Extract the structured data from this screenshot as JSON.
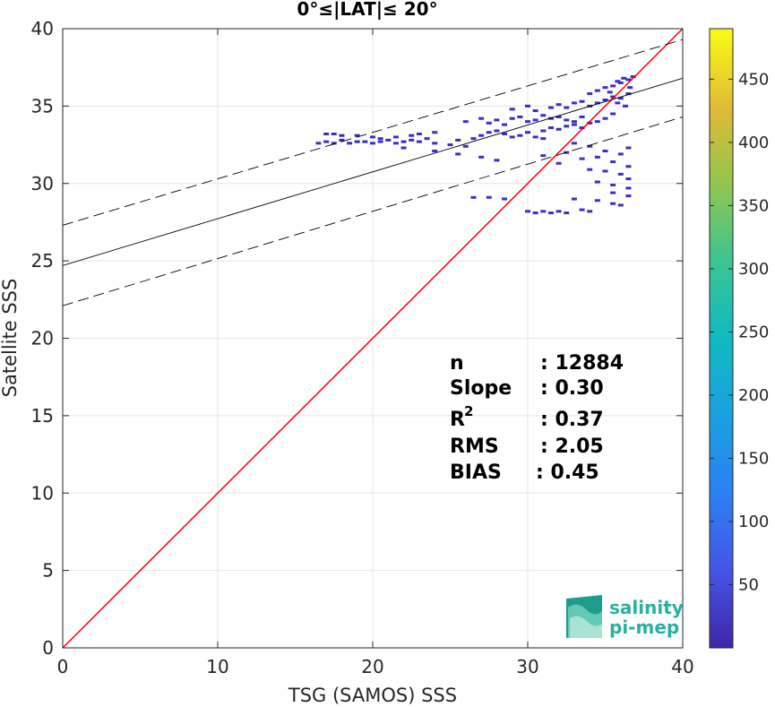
{
  "chart_data": {
    "type": "scatter",
    "title": "0°≤|LAT|≤ 20°",
    "xlabel": "TSG (SAMOS) SSS",
    "ylabel": "Satellite SSS",
    "xlim": [
      0,
      40
    ],
    "ylim": [
      0,
      40
    ],
    "xticks": [
      "0",
      "10",
      "20",
      "30",
      "40"
    ],
    "yticks": [
      "0",
      "5",
      "10",
      "15",
      "20",
      "25",
      "30",
      "35",
      "40"
    ],
    "grid": true,
    "colorbar": {
      "range": [
        0,
        490
      ],
      "ticks": [
        "50",
        "100",
        "150",
        "200",
        "250",
        "300",
        "350",
        "400",
        "450"
      ],
      "colormap": "parula"
    },
    "lines": [
      {
        "kind": "identity",
        "color": "#ff0000",
        "x": [
          0,
          40
        ],
        "y": [
          0,
          40
        ]
      },
      {
        "kind": "fit",
        "color": "#000000",
        "x": [
          0,
          40
        ],
        "y": [
          24.7,
          36.8
        ]
      },
      {
        "kind": "fit-upper",
        "color": "#000000",
        "dash": true,
        "x": [
          0,
          40
        ],
        "y": [
          27.3,
          39.3
        ]
      },
      {
        "kind": "fit-lower",
        "color": "#000000",
        "dash": true,
        "x": [
          0,
          40
        ],
        "y": [
          22.1,
          34.3
        ]
      }
    ],
    "density_points": [
      [
        16.5,
        32.6
      ],
      [
        17.0,
        32.7
      ],
      [
        17.5,
        32.6
      ],
      [
        18.0,
        32.8
      ],
      [
        18.5,
        32.6
      ],
      [
        19.0,
        32.7
      ],
      [
        19.5,
        32.7
      ],
      [
        20.0,
        32.6
      ],
      [
        20.5,
        32.7
      ],
      [
        21.0,
        32.8
      ],
      [
        21.5,
        32.6
      ],
      [
        22.0,
        32.7
      ],
      [
        22.5,
        32.8
      ],
      [
        23.0,
        32.7
      ],
      [
        23.5,
        32.9
      ],
      [
        17.0,
        33.2
      ],
      [
        17.5,
        33.2
      ],
      [
        18.0,
        33.1
      ],
      [
        19.0,
        33.1
      ],
      [
        20.0,
        33.0
      ],
      [
        20.5,
        32.9
      ],
      [
        21.5,
        33.0
      ],
      [
        22.5,
        33.1
      ],
      [
        23.0,
        33.2
      ],
      [
        24.0,
        33.3
      ],
      [
        24.0,
        32.6
      ],
      [
        25.0,
        32.5
      ],
      [
        26.0,
        32.4
      ],
      [
        25.5,
        32.8
      ],
      [
        26.5,
        32.9
      ],
      [
        27.0,
        33.1
      ],
      [
        27.5,
        33.3
      ],
      [
        28.0,
        33.4
      ],
      [
        28.5,
        33.2
      ],
      [
        29.0,
        33.0
      ],
      [
        29.5,
        33.1
      ],
      [
        30.0,
        33.3
      ],
      [
        30.5,
        33.0
      ],
      [
        31.0,
        32.9
      ],
      [
        26.0,
        34.0
      ],
      [
        27.0,
        34.2
      ],
      [
        27.5,
        33.9
      ],
      [
        28.0,
        34.1
      ],
      [
        28.5,
        33.8
      ],
      [
        29.0,
        34.2
      ],
      [
        29.5,
        34.3
      ],
      [
        30.0,
        34.0
      ],
      [
        30.5,
        34.1
      ],
      [
        31.0,
        34.4
      ],
      [
        31.5,
        34.2
      ],
      [
        32.0,
        34.3
      ],
      [
        32.5,
        34.1
      ],
      [
        33.0,
        34.0
      ],
      [
        33.5,
        34.3
      ],
      [
        31.0,
        33.4
      ],
      [
        31.5,
        33.6
      ],
      [
        32.0,
        33.5
      ],
      [
        32.5,
        33.7
      ],
      [
        33.0,
        33.8
      ],
      [
        33.5,
        33.6
      ],
      [
        34.0,
        33.9
      ],
      [
        34.5,
        34.0
      ],
      [
        35.0,
        34.2
      ],
      [
        35.5,
        34.5
      ],
      [
        29.0,
        34.8
      ],
      [
        30.0,
        35.0
      ],
      [
        30.5,
        34.7
      ],
      [
        31.5,
        34.9
      ],
      [
        32.0,
        35.1
      ],
      [
        32.5,
        34.9
      ],
      [
        33.0,
        35.2
      ],
      [
        33.5,
        35.3
      ],
      [
        34.0,
        35.0
      ],
      [
        34.5,
        35.2
      ],
      [
        35.0,
        35.4
      ],
      [
        35.5,
        35.6
      ],
      [
        36.0,
        35.5
      ],
      [
        36.5,
        35.8
      ],
      [
        34.0,
        35.8
      ],
      [
        34.5,
        36.0
      ],
      [
        35.0,
        36.2
      ],
      [
        35.5,
        36.3
      ],
      [
        36.0,
        36.5
      ],
      [
        36.5,
        36.7
      ],
      [
        36.8,
        36.9
      ],
      [
        35.8,
        36.6
      ],
      [
        36.2,
        36.8
      ],
      [
        35.3,
        35.9
      ],
      [
        35.8,
        35.2
      ],
      [
        36.3,
        35.0
      ],
      [
        36.6,
        36.2
      ],
      [
        33.0,
        32.6
      ],
      [
        34.0,
        32.4
      ],
      [
        35.0,
        32.1
      ],
      [
        36.0,
        31.9
      ],
      [
        36.5,
        32.3
      ],
      [
        33.5,
        31.6
      ],
      [
        34.5,
        31.7
      ],
      [
        35.5,
        31.4
      ],
      [
        36.5,
        31.1
      ],
      [
        34.0,
        30.9
      ],
      [
        35.0,
        30.8
      ],
      [
        36.0,
        30.6
      ],
      [
        36.5,
        30.3
      ],
      [
        34.5,
        30.1
      ],
      [
        35.5,
        29.9
      ],
      [
        36.5,
        29.7
      ],
      [
        35.5,
        29.4
      ],
      [
        36.5,
        29.2
      ],
      [
        33.0,
        29.0
      ],
      [
        34.5,
        28.9
      ],
      [
        35.5,
        28.7
      ],
      [
        36.0,
        28.6
      ],
      [
        26.5,
        29.1
      ],
      [
        27.5,
        29.1
      ],
      [
        28.5,
        29.0
      ],
      [
        30.0,
        28.2
      ],
      [
        30.5,
        28.1
      ],
      [
        31.0,
        28.2
      ],
      [
        31.5,
        28.1
      ],
      [
        32.0,
        28.2
      ],
      [
        32.5,
        28.1
      ],
      [
        33.5,
        28.3
      ],
      [
        34.0,
        28.2
      ],
      [
        24.0,
        32.1
      ],
      [
        25.5,
        31.9
      ],
      [
        27.0,
        31.7
      ],
      [
        28.0,
        31.5
      ],
      [
        22.0,
        32.3
      ],
      [
        31.0,
        31.8
      ],
      [
        32.0,
        31.3
      ],
      [
        32.5,
        32.0
      ]
    ]
  },
  "stats": {
    "n_label": "n",
    "n_value": ": 12884",
    "slope_label": "Slope",
    "slope_value": ": 0.30",
    "r2_label": "R",
    "r2_sup": "2",
    "r2_value": ": 0.37",
    "rms_label": "RMS",
    "rms_value": ": 2.05",
    "bias_label": "BIAS",
    "bias_value": ": 0.45"
  },
  "logo": {
    "line1": "salinity",
    "line2": "pi-mep"
  }
}
